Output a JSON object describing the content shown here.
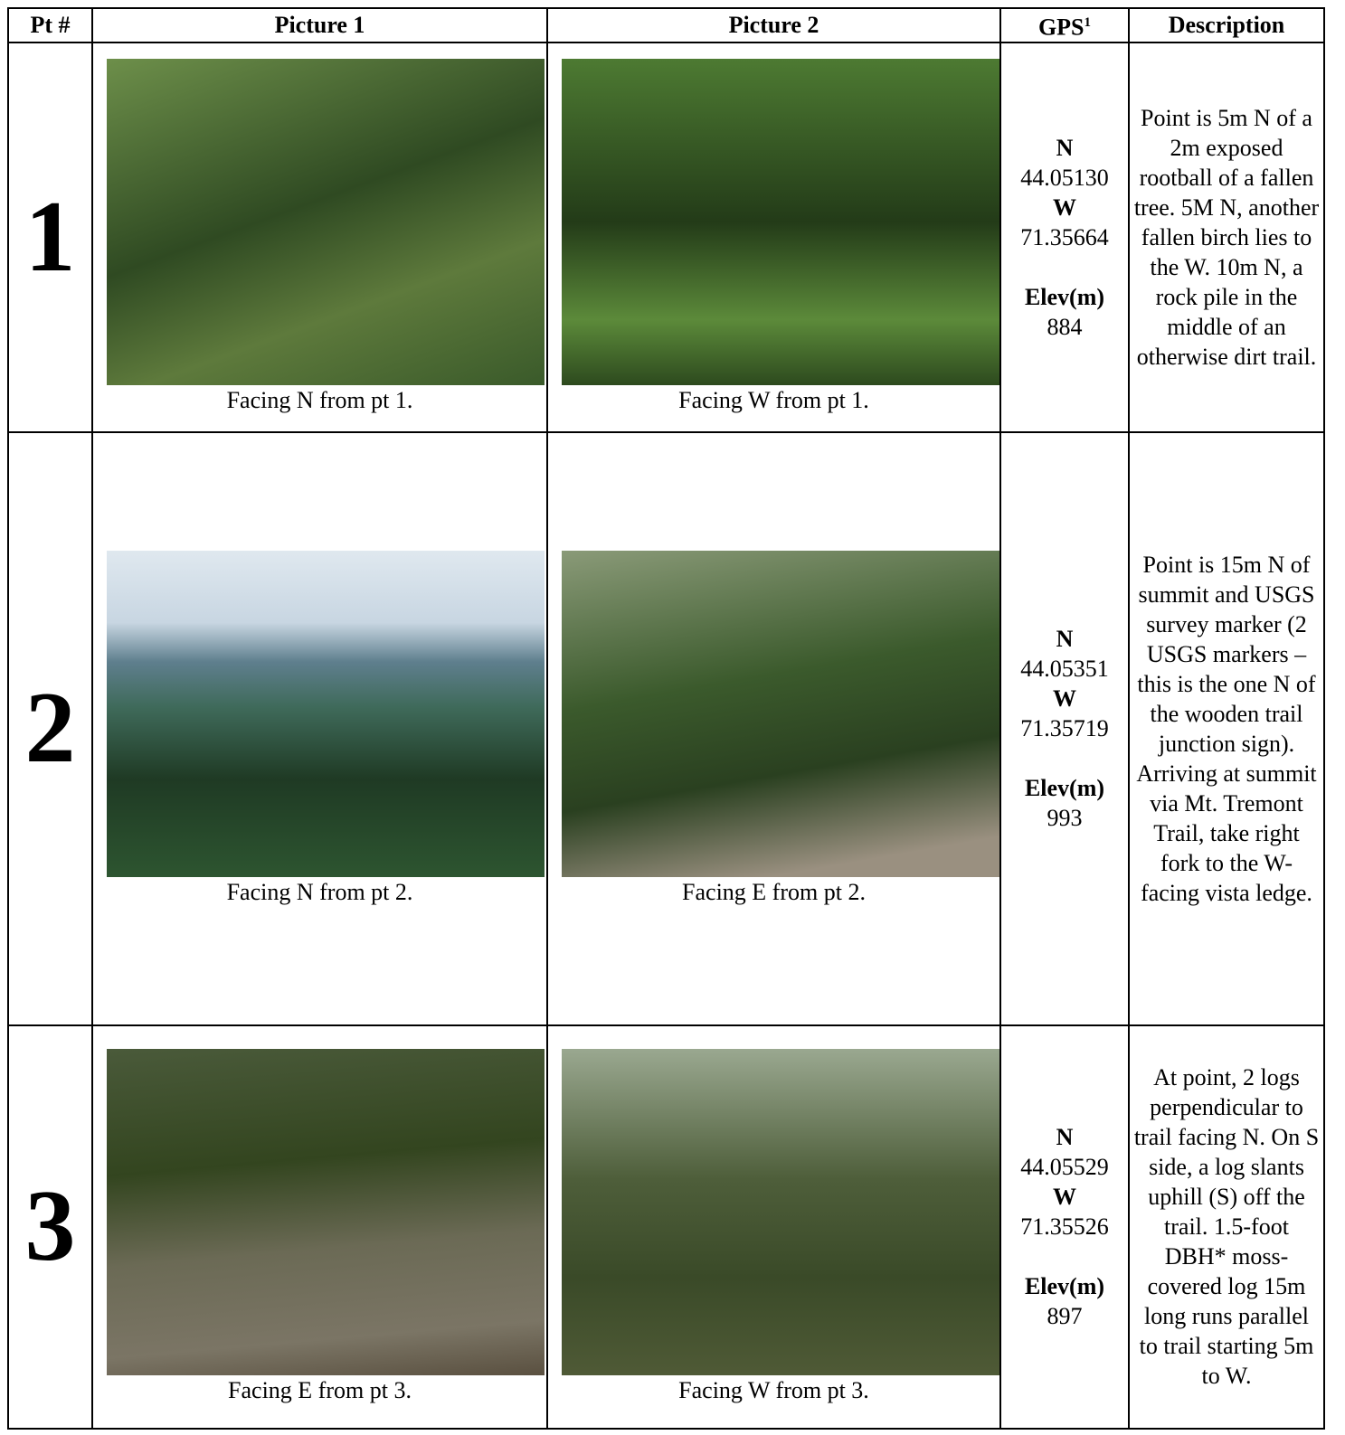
{
  "table": {
    "header": {
      "pt": "Pt #",
      "picture1": "Picture 1",
      "picture2": "Picture 2",
      "gps": {
        "text": "GPS",
        "sup": "1"
      },
      "description": "Description"
    },
    "rows": [
      {
        "pt": "1",
        "caption1": "Facing N from pt 1.",
        "caption2": "Facing W from pt 1.",
        "gps": {
          "n_label": "N",
          "n": "44.05130",
          "w_label": "W",
          "w": "71.35664",
          "elev_label": "Elev(m)",
          "elev": "884"
        },
        "description": "Point is 5m N of a 2m exposed rootball of a fallen tree. 5M N, another fallen birch lies to the W. 10m N, a rock pile in the middle of an otherwise dirt trail."
      },
      {
        "pt": "2",
        "caption1": "Facing N from pt 2.",
        "caption2": "Facing E from pt 2.",
        "gps": {
          "n_label": "N",
          "n": "44.05351",
          "w_label": "W",
          "w": "71.35719",
          "elev_label": "Elev(m)",
          "elev": "993"
        },
        "description": "Point is 15m N of summit and USGS survey marker (2 USGS markers – this is the one N of the wooden trail junction sign). Arriving at summit via Mt. Tremont Trail, take right fork to the W-facing vista ledge."
      },
      {
        "pt": "3",
        "caption1": "Facing E from pt 3.",
        "caption2": "Facing W from pt 3.",
        "gps": {
          "n_label": "N",
          "n": "44.05529",
          "w_label": "W",
          "w": "71.35526",
          "elev_label": "Elev(m)",
          "elev": "897"
        },
        "description": "At point, 2 logs perpendicular to trail facing N. On S side, a log slants uphill (S) off the trail. 1.5-foot DBH* moss-covered log 15m long runs parallel to trail starting 5m to W."
      }
    ]
  }
}
